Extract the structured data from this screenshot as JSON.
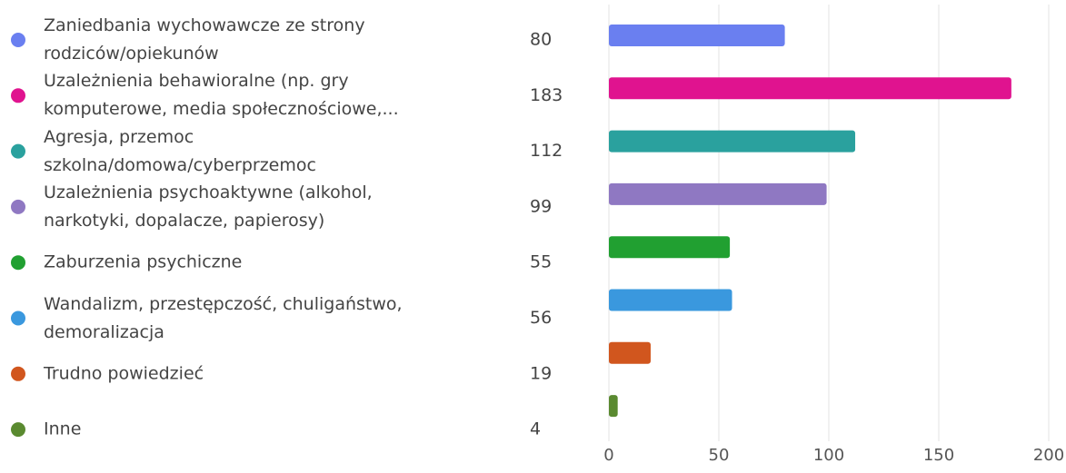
{
  "chart_data": {
    "type": "bar",
    "orientation": "horizontal",
    "categories": [
      "Zaniedbania wychowawcze ze strony rodziców/opiekunów",
      "Uzależnienia behawioralne (np. gry komputerowe, media społecznościowe,...",
      "Agresja, przemoc szkolna/domowa/cyberprzemoc",
      "Uzależnienia psychoaktywne (alkohol, narkotyki, dopalacze, papierosy)",
      "Zaburzenia psychiczne",
      "Wandalizm, przestępczość, chuligaństwo, demoralizacja",
      "Trudno powiedzieć",
      "Inne"
    ],
    "values": [
      80,
      183,
      112,
      99,
      55,
      56,
      19,
      4
    ],
    "colors": [
      "#6a7ff0",
      "#e0138f",
      "#2aa19e",
      "#8f78c2",
      "#21a031",
      "#3a98de",
      "#d1561e",
      "#5a8a30"
    ],
    "xlim": [
      0,
      200
    ],
    "xticks": [
      0,
      50,
      100,
      150,
      200
    ],
    "grid": true
  }
}
